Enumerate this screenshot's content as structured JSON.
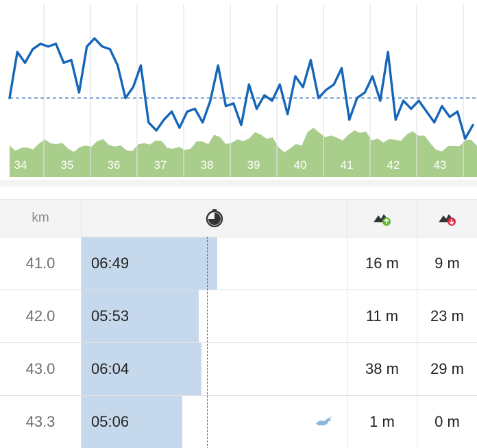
{
  "chart": {
    "km_labels": [
      "34",
      "35",
      "36",
      "37",
      "38",
      "39",
      "40",
      "41",
      "42",
      "43"
    ],
    "pace_series": [
      3.0,
      1.3,
      1.7,
      1.2,
      1.0,
      1.1,
      1.0,
      1.7,
      1.6,
      2.8,
      1.1,
      0.8,
      1.1,
      1.2,
      1.8,
      3.0,
      2.6,
      1.8,
      3.9,
      4.2,
      3.8,
      3.5,
      4.1,
      3.5,
      3.4,
      3.9,
      3.1,
      1.8,
      3.3,
      3.2,
      4.0,
      2.5,
      3.4,
      2.9,
      3.1,
      2.5,
      3.6,
      2.2,
      2.6,
      1.6,
      3.0,
      2.7,
      2.5,
      1.9,
      3.8,
      3.0,
      2.8,
      2.2,
      3.1,
      1.3,
      3.8,
      3.1,
      3.4,
      3.1,
      3.5,
      3.9,
      3.3,
      3.7,
      3.5,
      4.5,
      4.0
    ],
    "avg_pace_ratio": 0.57,
    "colors": {
      "line": "#1565b8",
      "fill": "#a9cd8b",
      "avg": "#2f6db5"
    }
  },
  "table": {
    "header": {
      "km": "km",
      "time_icon": "stopwatch-icon",
      "up_icon": "ascent-icon",
      "down_icon": "descent-icon"
    },
    "rows": [
      {
        "km": "41.0",
        "time": "06:49",
        "bar_pct": 0.51,
        "up": "16 m",
        "down": "9 m"
      },
      {
        "km": "42.0",
        "time": "05:53",
        "bar_pct": 0.44,
        "up": "11 m",
        "down": "23 m"
      },
      {
        "km": "43.0",
        "time": "06:04",
        "bar_pct": 0.45,
        "up": "38 m",
        "down": "29 m"
      },
      {
        "km": "43.3",
        "time": "05:06",
        "bar_pct": 0.38,
        "up": "1 m",
        "down": "0 m",
        "fastest_icon": "rabbit-icon"
      }
    ]
  }
}
